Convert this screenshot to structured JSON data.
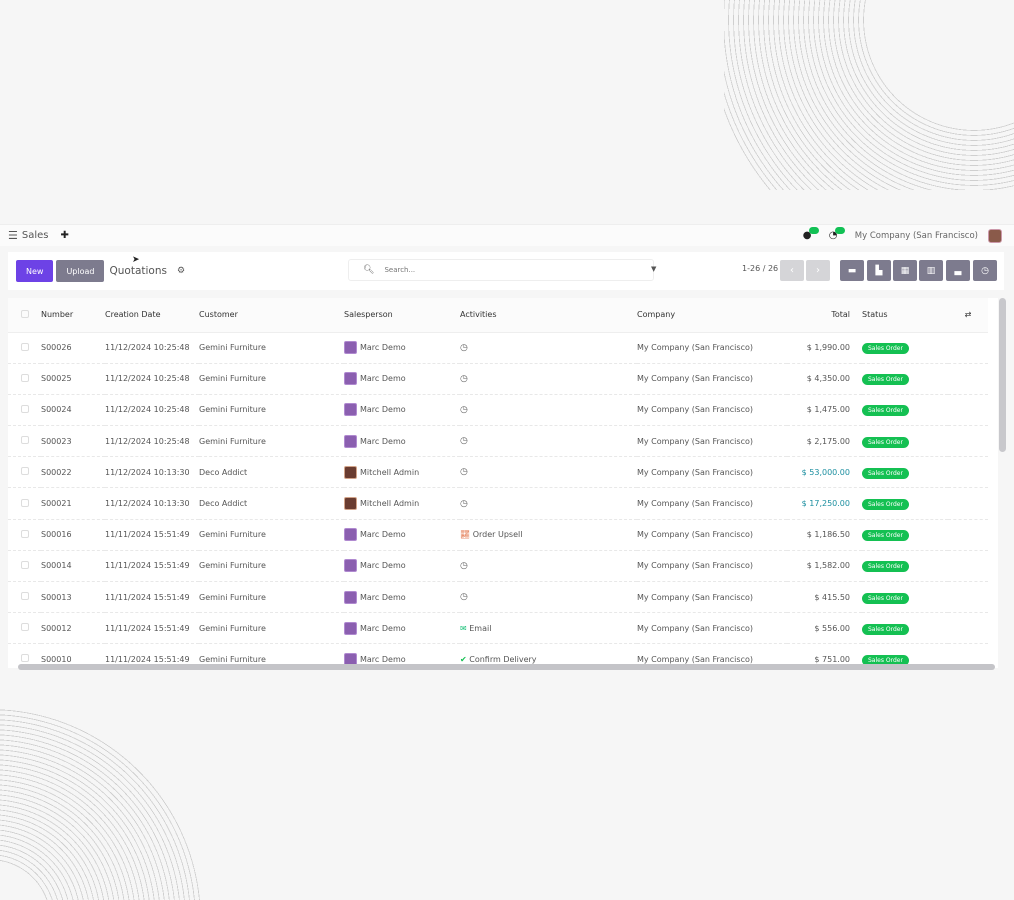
{
  "topbar": {
    "app_name": "Sales",
    "company": "My Company (San Francisco)"
  },
  "control": {
    "new_label": "New",
    "upload_label": "Upload",
    "title": "Quotations",
    "search_placeholder": "Search...",
    "pager": "1-26 / 26"
  },
  "table": {
    "headers": [
      "Number",
      "Creation Date",
      "Customer",
      "Salesperson",
      "Activities",
      "Company",
      "Total",
      "Status"
    ],
    "rows": [
      {
        "number": "S00026",
        "date": "11/12/2024 10:25:48",
        "customer": "Gemini Furniture",
        "salesperson": "Marc Demo",
        "activity": "",
        "activity_icon": "clock",
        "company": "My Company (San Francisco)",
        "total": "$ 1,990.00",
        "status": "Sales Order"
      },
      {
        "number": "S00025",
        "date": "11/12/2024 10:25:48",
        "customer": "Gemini Furniture",
        "salesperson": "Marc Demo",
        "activity": "",
        "activity_icon": "clock",
        "company": "My Company (San Francisco)",
        "total": "$ 4,350.00",
        "status": "Sales Order"
      },
      {
        "number": "S00024",
        "date": "11/12/2024 10:25:48",
        "customer": "Gemini Furniture",
        "salesperson": "Marc Demo",
        "activity": "",
        "activity_icon": "clock",
        "company": "My Company (San Francisco)",
        "total": "$ 1,475.00",
        "status": "Sales Order"
      },
      {
        "number": "S00023",
        "date": "11/12/2024 10:25:48",
        "customer": "Gemini Furniture",
        "salesperson": "Marc Demo",
        "activity": "",
        "activity_icon": "clock",
        "company": "My Company (San Francisco)",
        "total": "$ 2,175.00",
        "status": "Sales Order"
      },
      {
        "number": "S00022",
        "date": "11/12/2024 10:13:30",
        "customer": "Deco Addict",
        "salesperson": "Mitchell Admin",
        "activity": "",
        "activity_icon": "clock",
        "company": "My Company (San Francisco)",
        "total": "$ 53,000.00",
        "total_highlight": true,
        "status": "Sales Order"
      },
      {
        "number": "S00021",
        "date": "11/12/2024 10:13:30",
        "customer": "Deco Addict",
        "salesperson": "Mitchell Admin",
        "activity": "",
        "activity_icon": "clock",
        "company": "My Company (San Francisco)",
        "total": "$ 17,250.00",
        "total_highlight": true,
        "status": "Sales Order"
      },
      {
        "number": "S00016",
        "date": "11/11/2024 15:51:49",
        "customer": "Gemini Furniture",
        "salesperson": "Marc Demo",
        "activity": "Order Upsell",
        "activity_icon": "chart-line",
        "company": "My Company (San Francisco)",
        "total": "$ 1,186.50",
        "status": "Sales Order"
      },
      {
        "number": "S00014",
        "date": "11/11/2024 15:51:49",
        "customer": "Gemini Furniture",
        "salesperson": "Marc Demo",
        "activity": "",
        "activity_icon": "clock",
        "company": "My Company (San Francisco)",
        "total": "$ 1,582.00",
        "status": "Sales Order"
      },
      {
        "number": "S00013",
        "date": "11/11/2024 15:51:49",
        "customer": "Gemini Furniture",
        "salesperson": "Marc Demo",
        "activity": "",
        "activity_icon": "clock",
        "company": "My Company (San Francisco)",
        "total": "$ 415.50",
        "status": "Sales Order"
      },
      {
        "number": "S00012",
        "date": "11/11/2024 15:51:49",
        "customer": "Gemini Furniture",
        "salesperson": "Marc Demo",
        "activity": "Email",
        "activity_icon": "envelope",
        "company": "My Company (San Francisco)",
        "total": "$ 556.00",
        "status": "Sales Order"
      },
      {
        "number": "S00010",
        "date": "11/11/2024 15:51:49",
        "customer": "Gemini Furniture",
        "salesperson": "Marc Demo",
        "activity": "Confirm Delivery",
        "activity_icon": "check",
        "company": "My Company (San Francisco)",
        "total": "$ 751.00",
        "status": "Sales Order"
      }
    ]
  },
  "colors": {
    "primary": "#6d42e6",
    "secondary": "#7d7b8e",
    "status_green": "#14c052",
    "highlight_total": "#1c8fa0"
  }
}
